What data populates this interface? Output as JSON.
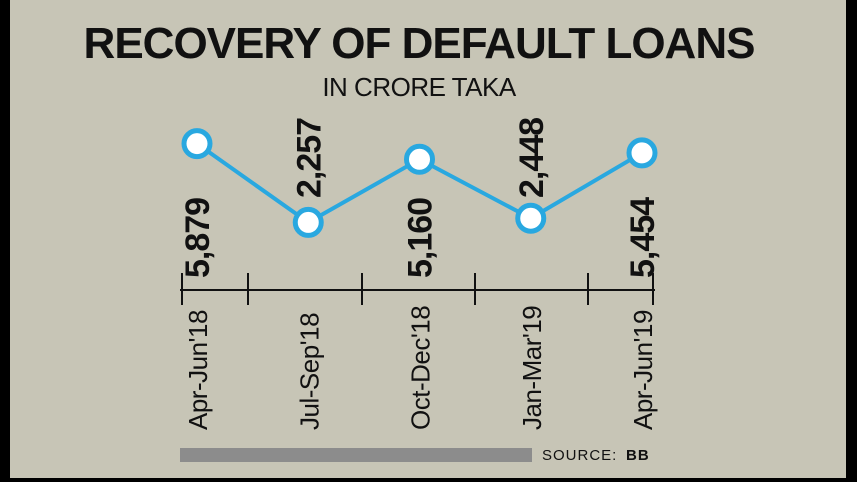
{
  "colors": {
    "background": "#c7c5b6",
    "frame": "#000000",
    "line": "#29a8e0",
    "marker_fill": "#ffffff",
    "axis": "#111111",
    "source_bar": "#8c8c8c"
  },
  "chart_data": {
    "type": "line",
    "title": "RECOVERY OF DEFAULT LOANS",
    "subtitle": "IN CRORE TAKA",
    "categories": [
      "Apr-Jun'18",
      "Jul-Sep'18",
      "Oct-Dec'18",
      "Jan-Mar'19",
      "Apr-Jun'19"
    ],
    "values": [
      5879,
      2257,
      5160,
      2448,
      5454
    ],
    "value_labels": [
      "5,879",
      "2,257",
      "5,160",
      "2,448",
      "5,454"
    ],
    "xlabel": "",
    "ylabel": "",
    "grid": false,
    "legend": "none",
    "source_label": "SOURCE:",
    "source_value": "BB"
  }
}
